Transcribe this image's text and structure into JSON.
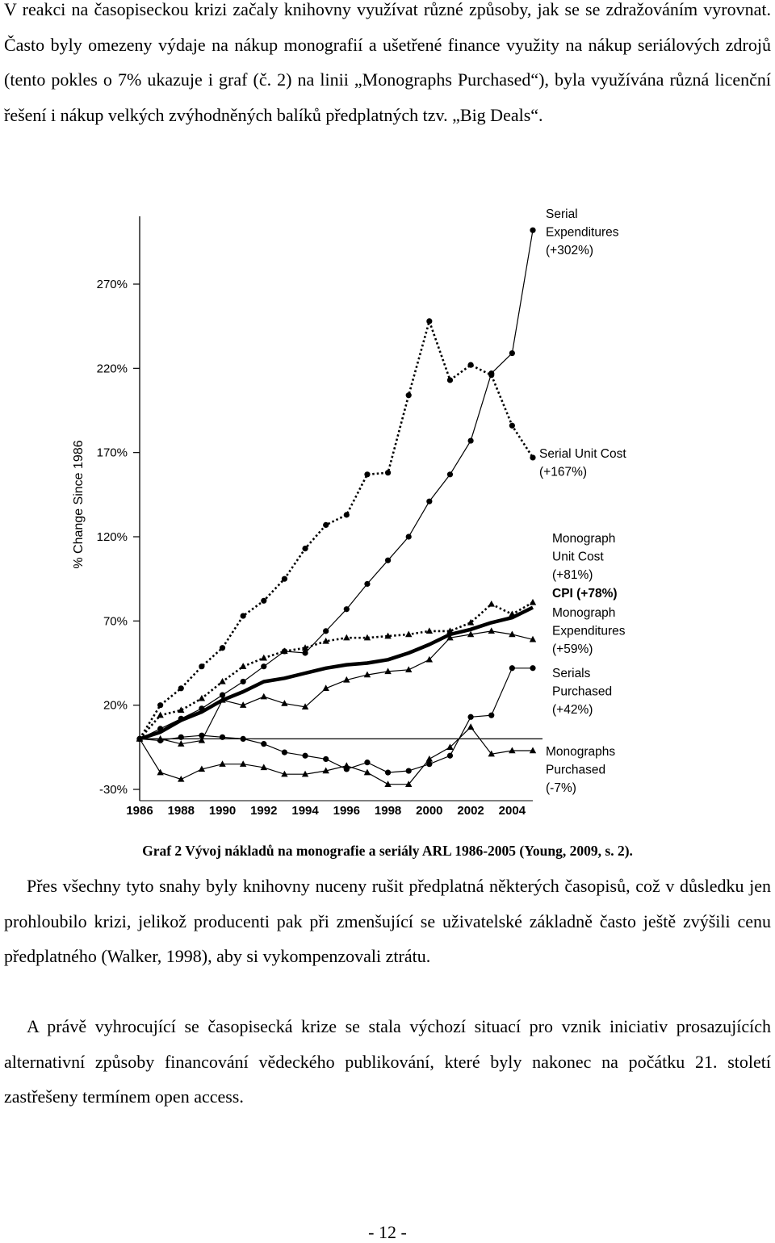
{
  "paragraphs": {
    "p1": "V reakci na časopiseckou krizi začaly knihovny využívat různé způsoby, jak se se zdražováním vyrovnat. Často byly omezeny výdaje na nákup monografií a ušetřené finance využity na nákup seriálových zdrojů (tento pokles o 7% ukazuje i graf (č. 2) na linii „Monographs Purchased“), byla využívána různá licenční řešení i nákup velkých zvýhodněných balíků předplatných tzv. „Big Deals“.",
    "p2": "Přes všechny tyto snahy byly knihovny nuceny rušit předplatná některých časopisů, což v důsledku jen prohloubilo krizi, jelikož producenti pak při zmenšující se uživatelské základně často ještě zvýšili cenu předplatného (Walker, 1998), aby si vykompenzovali ztrátu.",
    "p3": "A právě vyhrocující se časopisecká krize se stala výchozí situací pro vznik iniciativ prosazujících alternativní způsoby financování vědeckého publikování, které byly nakonec na počátku 21. století zastřešeny termínem open access."
  },
  "caption": "Graf 2 Vývoj nákladů na monografie a seriály ARL 1986-2005 (Young, 2009, s. 2).",
  "page_number": "- 12 -",
  "chart_data": {
    "type": "line",
    "ylabel": "% Change Since 1986",
    "ylim": [
      -30,
      270
    ],
    "y_ticks": [
      "-30%",
      "20%",
      "70%",
      "120%",
      "170%",
      "220%",
      "270%"
    ],
    "y_tick_values": [
      -30,
      20,
      70,
      120,
      170,
      220,
      270
    ],
    "x_ticks": [
      "1986",
      "1988",
      "1990",
      "1992",
      "1994",
      "1996",
      "1998",
      "2000",
      "2002",
      "2004"
    ],
    "x_tick_values": [
      1986,
      1988,
      1990,
      1992,
      1994,
      1996,
      1998,
      2000,
      2002,
      2004
    ],
    "x": [
      1986,
      1987,
      1988,
      1989,
      1990,
      1991,
      1992,
      1993,
      1994,
      1995,
      1996,
      1997,
      1998,
      1999,
      2000,
      2001,
      2002,
      2003,
      2004,
      2005
    ],
    "baseline": 0,
    "series": [
      {
        "key": "serial_exp",
        "label_lines": [
          "Serial",
          "Expenditures",
          "(+302%)"
        ],
        "style": "solid",
        "marker": "circle",
        "values": [
          0,
          6,
          12,
          18,
          26,
          34,
          43,
          52,
          51,
          64,
          77,
          92,
          106,
          120,
          141,
          157,
          177,
          217,
          229,
          302
        ]
      },
      {
        "key": "serial_unit",
        "label_lines": [
          "Serial Unit Cost",
          "(+167%)"
        ],
        "style": "dotted",
        "marker": "circle",
        "values": [
          0,
          20,
          30,
          43,
          54,
          73,
          82,
          95,
          113,
          127,
          133,
          157,
          158,
          204,
          248,
          213,
          222,
          216,
          186,
          167
        ]
      },
      {
        "key": "mono_unit",
        "label_lines": [
          "Monograph",
          "Unit Cost",
          "(+81%)"
        ],
        "style": "dotted",
        "marker": "triangle",
        "values": [
          0,
          14,
          17,
          24,
          34,
          43,
          48,
          52,
          54,
          58,
          60,
          60,
          61,
          62,
          64,
          64,
          69,
          80,
          74,
          81
        ]
      },
      {
        "key": "cpi",
        "label_lines": [
          "CPI (+78%)"
        ],
        "style": "thick",
        "marker": "none",
        "values": [
          0,
          4,
          11,
          16,
          23,
          28,
          34,
          36,
          39,
          42,
          44,
          45,
          47,
          51,
          56,
          62,
          65,
          69,
          72,
          78
        ]
      },
      {
        "key": "mono_exp",
        "label_lines": [
          "Monograph",
          "Expenditures",
          "(+59%)"
        ],
        "style": "solid",
        "marker": "triangle",
        "values": [
          0,
          0,
          -3,
          -1,
          23,
          20,
          25,
          21,
          19,
          30,
          35,
          38,
          40,
          41,
          47,
          60,
          62,
          64,
          62,
          59
        ]
      },
      {
        "key": "serials_purch",
        "label_lines": [
          "Serials",
          "Purchased",
          "(+42%)"
        ],
        "style": "solid",
        "marker": "circle",
        "values": [
          0,
          -1,
          1,
          2,
          1,
          0,
          -3,
          -8,
          -10,
          -12,
          -18,
          -14,
          -20,
          -19,
          -15,
          -10,
          13,
          14,
          42,
          42
        ]
      },
      {
        "key": "mono_purch",
        "label_lines": [
          "Monographs",
          "Purchased",
          "(-7%)"
        ],
        "style": "solid",
        "marker": "triangle",
        "values": [
          0,
          -20,
          -24,
          -18,
          -15,
          -15,
          -17,
          -21,
          -21,
          -19,
          -16,
          -20,
          -27,
          -27,
          -12,
          -5,
          7,
          -9,
          -7,
          -7
        ]
      }
    ],
    "colors": {
      "line": "#000000",
      "background": "#ffffff"
    }
  }
}
